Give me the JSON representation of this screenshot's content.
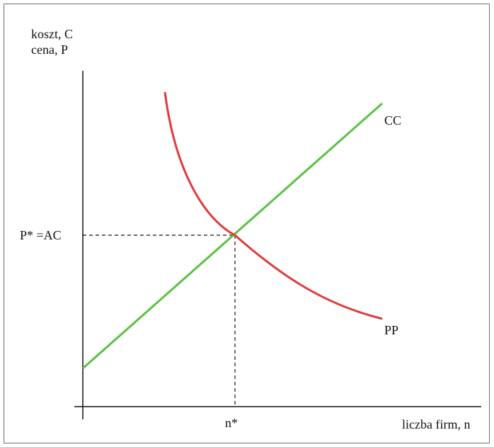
{
  "diagram": {
    "y_axis_label_line1": "koszt, C",
    "y_axis_label_line2": "cena, P",
    "x_axis_label": "liczba firm, n",
    "equilibrium_price_label": "P* =AC",
    "equilibrium_quantity_label": "n*",
    "curves": [
      {
        "label": "CC",
        "color": "#5ac140"
      },
      {
        "label": "PP",
        "color": "#e23a3a"
      }
    ]
  }
}
